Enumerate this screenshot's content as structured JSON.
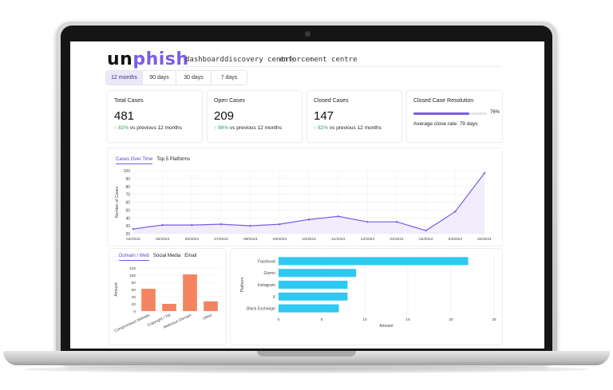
{
  "app": {
    "logo_part1": "un",
    "logo_part2": "phish"
  },
  "nav": {
    "items": [
      "dashboard",
      "discovery centre",
      "enforcement centre"
    ]
  },
  "period_tabs": {
    "items": [
      "12 months",
      "90 days",
      "30 days",
      "7 days"
    ],
    "active": "12 months"
  },
  "cards": {
    "total": {
      "title": "Total Cases",
      "value": "481",
      "delta": "82%",
      "delta_text": "vs previous 12 months"
    },
    "open": {
      "title": "Open Cases",
      "value": "209",
      "delta": "86%",
      "delta_text": "vs previous 12 months"
    },
    "closed": {
      "title": "Closed Cases",
      "value": "147",
      "delta": "82%",
      "delta_text": "vs previous 12 months"
    },
    "resolution": {
      "title": "Closed Case Resolution",
      "percent_label": "76%",
      "percent": 76,
      "avg_text": "Average close rate: 79 days"
    }
  },
  "colors": {
    "accent": "#7b5ce6",
    "up": "#2aa35b",
    "bar_orange": "#f4845f",
    "bar_cyan": "#2ec9f2"
  },
  "line_panel": {
    "tabs": [
      "Cases Over Time",
      "Top 5 Platforms"
    ],
    "active": "Cases Over Time"
  },
  "bar_panel": {
    "tabs": [
      "Domain / Web",
      "Social Media",
      "Email"
    ],
    "active": "Domain / Web"
  },
  "chart_data": [
    {
      "type": "line",
      "ylabel": "Number of Cases",
      "ylim": [
        20,
        100
      ],
      "yticks": [
        20,
        30,
        40,
        50,
        60,
        70,
        80,
        90,
        100
      ],
      "x": [
        "04/2023",
        "05/2023",
        "06/2023",
        "07/2023",
        "08/2023",
        "09/2023",
        "10/2023",
        "11/2023",
        "12/2023",
        "01/2024",
        "02/2024",
        "03/2024",
        "04/2024"
      ],
      "values": [
        26,
        31,
        31,
        32,
        30,
        32,
        38,
        42,
        35,
        35,
        24,
        48,
        97
      ],
      "grid": true
    },
    {
      "type": "bar",
      "ylabel": "Amount",
      "ylim": [
        0,
        120
      ],
      "yticks": [
        0,
        20,
        40,
        60,
        80,
        100,
        120
      ],
      "categories": [
        "Compromised Website",
        "Copyright / TM",
        "Malicious Domain",
        "Other"
      ],
      "values": [
        62,
        20,
        102,
        27
      ],
      "grid": true
    },
    {
      "type": "bar",
      "orientation": "horizontal",
      "xlabel": "Amount",
      "ylabel": "Platform",
      "xlim": [
        0,
        25
      ],
      "xticks": [
        0,
        5,
        10,
        15,
        20,
        25
      ],
      "categories": [
        "Facebook",
        "Gizmo",
        "Instagram",
        "X",
        "Black Exchange"
      ],
      "values": [
        22,
        9,
        8,
        8,
        7
      ],
      "grid": true
    }
  ]
}
